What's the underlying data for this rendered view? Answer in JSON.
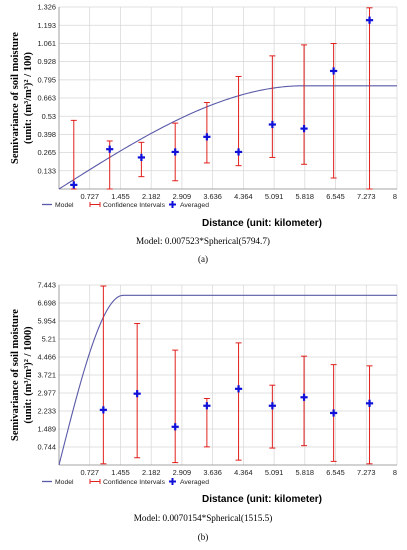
{
  "colors": {
    "model": "#5a5aa8",
    "ci": "#e0201c",
    "avg": "#1010d8",
    "grid": "#d6d6d6",
    "axis": "#888888"
  },
  "chart_data": [
    {
      "type": "scatter",
      "panel": "(a)",
      "ylabel_line1": "Semivariance of soil moisture",
      "ylabel_line2": "(unit: (m³/m³)² / 100)",
      "xlabel": "Distance (unit: kilometer)",
      "caption": "Model: 0.007523*Spherical(5794.7)",
      "xlim": [
        0,
        8
      ],
      "ylim": [
        0,
        1.326
      ],
      "x_ticks": [
        "0.727",
        "1.455",
        "2.182",
        "2.909",
        "3.636",
        "4.364",
        "5.091",
        "5.818",
        "6.545",
        "7.273",
        "8"
      ],
      "y_ticks": [
        "0.133",
        "0.265",
        "0.398",
        "0.53",
        "0.663",
        "0.795",
        "0.928",
        "1.061",
        "1.193",
        "1.326"
      ],
      "legend": [
        "Model",
        "Confidence Intervals",
        "Averaged"
      ],
      "model": {
        "sill": 0.752,
        "range_km": 5.79
      },
      "averaged": [
        {
          "x": 0.35,
          "y": 0.03,
          "ci": [
            0.0,
            0.5
          ]
        },
        {
          "x": 1.2,
          "y": 0.29,
          "ci": [
            0.0,
            0.35
          ]
        },
        {
          "x": 1.95,
          "y": 0.23,
          "ci": [
            0.09,
            0.34
          ]
        },
        {
          "x": 2.75,
          "y": 0.27,
          "ci": [
            0.06,
            0.48
          ]
        },
        {
          "x": 3.5,
          "y": 0.38,
          "ci": [
            0.19,
            0.63
          ]
        },
        {
          "x": 4.25,
          "y": 0.27,
          "ci": [
            0.17,
            0.82
          ]
        },
        {
          "x": 5.05,
          "y": 0.47,
          "ci": [
            0.23,
            0.97
          ]
        },
        {
          "x": 5.8,
          "y": 0.44,
          "ci": [
            0.18,
            1.05
          ]
        },
        {
          "x": 6.5,
          "y": 0.86,
          "ci": [
            0.08,
            1.06
          ]
        },
        {
          "x": 7.35,
          "y": 1.23,
          "ci": [
            0.0,
            1.32
          ]
        }
      ]
    },
    {
      "type": "scatter",
      "panel": "(b)",
      "ylabel_line1": "Semivariance of soil moisture",
      "ylabel_line2": "(unit: (m³/m³)² / 1000)",
      "xlabel": "Distance (unit: kilometer)",
      "caption": "Model: 0.0070154*Spherical(1515.5)",
      "xlim": [
        0,
        8
      ],
      "ylim": [
        0,
        7.443
      ],
      "x_ticks": [
        "0.727",
        "1.455",
        "2.182",
        "2.909",
        "3.636",
        "4.364",
        "5.091",
        "5.818",
        "6.545",
        "7.273",
        "8"
      ],
      "y_ticks": [
        "0.744",
        "1.489",
        "2.233",
        "2.977",
        "3.721",
        "4.466",
        "5.21",
        "5.954",
        "6.698",
        "7.443"
      ],
      "legend": [
        "Model",
        "Confidence Intervals",
        "Averaged"
      ],
      "model": {
        "sill": 7.015,
        "range_km": 1.52
      },
      "averaged": [
        {
          "x": 1.05,
          "y": 2.28,
          "ci": [
            0.05,
            7.4
          ]
        },
        {
          "x": 1.85,
          "y": 2.95,
          "ci": [
            0.3,
            5.85
          ]
        },
        {
          "x": 2.75,
          "y": 1.58,
          "ci": [
            0.1,
            4.75
          ]
        },
        {
          "x": 3.5,
          "y": 2.45,
          "ci": [
            0.75,
            2.75
          ]
        },
        {
          "x": 4.25,
          "y": 3.15,
          "ci": [
            0.2,
            5.05
          ]
        },
        {
          "x": 5.05,
          "y": 2.45,
          "ci": [
            0.7,
            3.3
          ]
        },
        {
          "x": 5.8,
          "y": 2.8,
          "ci": [
            0.8,
            4.5
          ]
        },
        {
          "x": 6.5,
          "y": 2.15,
          "ci": [
            0.15,
            4.15
          ]
        },
        {
          "x": 7.35,
          "y": 2.55,
          "ci": [
            0.05,
            4.1
          ]
        }
      ]
    }
  ]
}
